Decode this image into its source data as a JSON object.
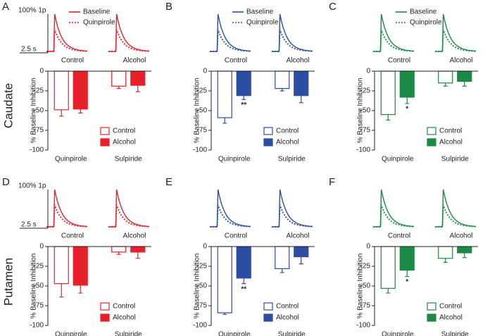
{
  "figure": {
    "row_labels": [
      "Caudate",
      "Putamen"
    ]
  },
  "chart_data": [
    {
      "type": "bar",
      "panel": "A",
      "color": "#e8202a",
      "ylabel": "% Baseline Inhibition",
      "trace_legend": [
        "Baseline",
        "Quinpirole"
      ],
      "trace_labels": [
        "Control",
        "Alcohol"
      ],
      "scale_bar": {
        "y": "100% 1p",
        "x": "2.5 s"
      },
      "categories": [
        "Quinpirole",
        "Sulpiride"
      ],
      "series": [
        {
          "name": "Control",
          "style": "outline",
          "values": [
            -49,
            -19
          ],
          "errors": [
            8,
            3
          ]
        },
        {
          "name": "Alcohol",
          "style": "filled",
          "values": [
            -48,
            -18
          ],
          "errors": [
            5,
            8
          ]
        }
      ],
      "ylim": [
        -100,
        0
      ],
      "yticks": [
        0,
        -25,
        -50,
        -75,
        -100
      ],
      "legend": "lower right",
      "annotations": []
    },
    {
      "type": "bar",
      "panel": "B",
      "color": "#2b4ea2",
      "ylabel": "% Baseline Inhibition",
      "trace_legend": [
        "Baseline",
        "Quinpirole"
      ],
      "trace_labels": [
        "Control",
        "Alcohol"
      ],
      "categories": [
        "Quinpirole",
        "Sulpiride"
      ],
      "series": [
        {
          "name": "Control",
          "style": "outline",
          "values": [
            -59,
            -22
          ],
          "errors": [
            7,
            3
          ]
        },
        {
          "name": "Alcohol",
          "style": "filled",
          "values": [
            -31,
            -31
          ],
          "errors": [
            5,
            9
          ]
        }
      ],
      "ylim": [
        -100,
        0
      ],
      "yticks": [
        0,
        -25,
        -50,
        -75,
        -100
      ],
      "legend": "lower right",
      "annotations": [
        {
          "text": "**",
          "series": 1,
          "category": 0
        }
      ]
    },
    {
      "type": "bar",
      "panel": "C",
      "color": "#1a8a44",
      "ylabel": "% Baseline Inhibition",
      "trace_legend": [
        "Baseline",
        "Quinpirole"
      ],
      "trace_labels": [
        "Control",
        "Alcohol"
      ],
      "categories": [
        "Quinpirole",
        "Sulpiride"
      ],
      "series": [
        {
          "name": "Control",
          "style": "outline",
          "values": [
            -55,
            -15
          ],
          "errors": [
            7,
            4
          ]
        },
        {
          "name": "Alcohol",
          "style": "filled",
          "values": [
            -33,
            -13
          ],
          "errors": [
            8,
            6
          ]
        }
      ],
      "ylim": [
        -100,
        0
      ],
      "yticks": [
        0,
        -25,
        -50,
        -75,
        -100
      ],
      "legend": "lower right",
      "annotations": [
        {
          "text": "*",
          "series": 1,
          "category": 0
        }
      ]
    },
    {
      "type": "bar",
      "panel": "D",
      "color": "#e8202a",
      "ylabel": "% Baseline Inhibition",
      "trace_labels": [
        "Control",
        "Alcohol"
      ],
      "scale_bar": {
        "y": "100% 1p",
        "x": "2.5 s"
      },
      "categories": [
        "Quinpirole",
        "Sulpiride"
      ],
      "series": [
        {
          "name": "Control",
          "style": "outline",
          "values": [
            -47,
            -7
          ],
          "errors": [
            17,
            3
          ]
        },
        {
          "name": "Alcohol",
          "style": "filled",
          "values": [
            -49,
            -7
          ],
          "errors": [
            10,
            8
          ]
        }
      ],
      "ylim": [
        -100,
        0
      ],
      "yticks": [
        0,
        -25,
        -50,
        -75,
        -100
      ],
      "legend": "lower right",
      "annotations": []
    },
    {
      "type": "bar",
      "panel": "E",
      "color": "#2b4ea2",
      "ylabel": "% Baseline Inhibition",
      "trace_labels": [
        "Control",
        "Alcohol"
      ],
      "categories": [
        "Quinpirole",
        "Sulpiride"
      ],
      "series": [
        {
          "name": "Control",
          "style": "outline",
          "values": [
            -84,
            -28
          ],
          "errors": [
            2,
            5
          ]
        },
        {
          "name": "Alcohol",
          "style": "filled",
          "values": [
            -40,
            -13
          ],
          "errors": [
            7,
            9
          ]
        }
      ],
      "ylim": [
        -100,
        0
      ],
      "yticks": [
        0,
        -25,
        -50,
        -75,
        -100
      ],
      "legend": "lower right",
      "annotations": [
        {
          "text": "**",
          "series": 1,
          "category": 0
        }
      ]
    },
    {
      "type": "bar",
      "panel": "F",
      "color": "#1a8a44",
      "ylabel": "% Baseline Inhibition",
      "trace_labels": [
        "Control",
        "Alcohol"
      ],
      "categories": [
        "Quinpirole",
        "Sulpiride"
      ],
      "series": [
        {
          "name": "Control",
          "style": "outline",
          "values": [
            -53,
            -15
          ],
          "errors": [
            6,
            5
          ]
        },
        {
          "name": "Alcohol",
          "style": "filled",
          "values": [
            -30,
            -8
          ],
          "errors": [
            8,
            6
          ]
        }
      ],
      "ylim": [
        -100,
        0
      ],
      "yticks": [
        0,
        -25,
        -50,
        -75,
        -100
      ],
      "legend": "lower right",
      "annotations": [
        {
          "text": "*",
          "series": 1,
          "category": 0
        }
      ]
    }
  ]
}
